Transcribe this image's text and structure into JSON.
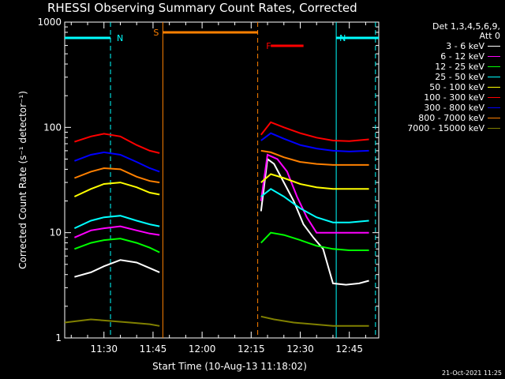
{
  "chart_data": {
    "type": "line",
    "title": "RHESSI Observing Summary Count Rates, Corrected",
    "xlabel": "Start Time (10-Aug-13 11:18:02)",
    "ylabel": "Corrected Count Rate (s⁻¹ detector⁻¹)",
    "y_scale": "log",
    "ylim": [
      1,
      1000
    ],
    "xlim": [
      "11:18",
      "12:54"
    ],
    "x_ticks": [
      "11:30",
      "11:45",
      "12:00",
      "12:15",
      "12:30",
      "12:45"
    ],
    "y_ticks": [
      "1",
      "10",
      "100",
      "1000"
    ],
    "grid": false,
    "legend_header": [
      "Det 1,3,4,5,6,9,",
      "Att 0"
    ],
    "legend_placement": "right",
    "series": [
      {
        "name": "3 - 6 keV",
        "color": "#ffffff",
        "points": [
          [
            "11:21",
            3.8
          ],
          [
            "11:26",
            4.2
          ],
          [
            "11:30",
            4.8
          ],
          [
            "11:35",
            5.5
          ],
          [
            "11:40",
            5.2
          ],
          [
            "11:44",
            4.6
          ],
          [
            "11:47",
            4.2
          ],
          [
            "12:18",
            16
          ],
          [
            "12:20",
            50
          ],
          [
            "12:22",
            45
          ],
          [
            "12:25",
            30
          ],
          [
            "12:28",
            20
          ],
          [
            "12:31",
            12
          ],
          [
            "12:34",
            9
          ],
          [
            "12:37",
            7
          ],
          [
            "12:40",
            3.3
          ],
          [
            "12:44",
            3.2
          ],
          [
            "12:48",
            3.3
          ],
          [
            "12:51",
            3.5
          ]
        ]
      },
      {
        "name": "6 - 12 keV",
        "color": "#ff00ff",
        "points": [
          [
            "11:21",
            9
          ],
          [
            "11:26",
            10.5
          ],
          [
            "11:30",
            11
          ],
          [
            "11:35",
            11.5
          ],
          [
            "11:40",
            10.5
          ],
          [
            "11:44",
            9.8
          ],
          [
            "11:47",
            9.5
          ],
          [
            "12:18",
            20
          ],
          [
            "12:20",
            55
          ],
          [
            "12:23",
            50
          ],
          [
            "12:26",
            38
          ],
          [
            "12:29",
            22
          ],
          [
            "12:32",
            14
          ],
          [
            "12:35",
            10
          ],
          [
            "12:40",
            10
          ],
          [
            "12:45",
            10
          ],
          [
            "12:51",
            10
          ]
        ]
      },
      {
        "name": "12 - 25 keV",
        "color": "#00ff00",
        "points": [
          [
            "11:21",
            7
          ],
          [
            "11:26",
            8
          ],
          [
            "11:30",
            8.5
          ],
          [
            "11:35",
            8.8
          ],
          [
            "11:40",
            8
          ],
          [
            "11:44",
            7.2
          ],
          [
            "11:47",
            6.5
          ],
          [
            "12:18",
            8
          ],
          [
            "12:21",
            10
          ],
          [
            "12:25",
            9.5
          ],
          [
            "12:30",
            8.5
          ],
          [
            "12:35",
            7.5
          ],
          [
            "12:40",
            7
          ],
          [
            "12:45",
            6.8
          ],
          [
            "12:51",
            6.8
          ]
        ]
      },
      {
        "name": "25 - 50 keV",
        "color": "#00ffff",
        "points": [
          [
            "11:21",
            11
          ],
          [
            "11:26",
            13
          ],
          [
            "11:30",
            14
          ],
          [
            "11:35",
            14.5
          ],
          [
            "11:40",
            13
          ],
          [
            "11:44",
            12
          ],
          [
            "11:47",
            11.5
          ],
          [
            "12:18",
            22
          ],
          [
            "12:21",
            26
          ],
          [
            "12:25",
            22
          ],
          [
            "12:30",
            17
          ],
          [
            "12:35",
            14
          ],
          [
            "12:40",
            12.5
          ],
          [
            "12:45",
            12.5
          ],
          [
            "12:51",
            13
          ]
        ]
      },
      {
        "name": "50 - 100 keV",
        "color": "#ffff00",
        "points": [
          [
            "11:21",
            22
          ],
          [
            "11:26",
            26
          ],
          [
            "11:30",
            29
          ],
          [
            "11:35",
            30
          ],
          [
            "11:40",
            27
          ],
          [
            "11:44",
            24
          ],
          [
            "11:47",
            23
          ],
          [
            "12:18",
            30
          ],
          [
            "12:21",
            36
          ],
          [
            "12:25",
            33
          ],
          [
            "12:30",
            29
          ],
          [
            "12:35",
            27
          ],
          [
            "12:40",
            26
          ],
          [
            "12:45",
            26
          ],
          [
            "12:51",
            26
          ]
        ]
      },
      {
        "name": "100 - 300 keV",
        "color": "#ff0000",
        "points": [
          [
            "11:21",
            73
          ],
          [
            "11:26",
            82
          ],
          [
            "11:30",
            87
          ],
          [
            "11:35",
            82
          ],
          [
            "11:40",
            68
          ],
          [
            "11:44",
            60
          ],
          [
            "11:47",
            57
          ],
          [
            "12:18",
            85
          ],
          [
            "12:21",
            112
          ],
          [
            "12:25",
            100
          ],
          [
            "12:30",
            88
          ],
          [
            "12:35",
            80
          ],
          [
            "12:40",
            75
          ],
          [
            "12:45",
            74
          ],
          [
            "12:51",
            77
          ]
        ]
      },
      {
        "name": "300 - 800 keV",
        "color": "#0000ff",
        "points": [
          [
            "11:21",
            48
          ],
          [
            "11:26",
            55
          ],
          [
            "11:30",
            58
          ],
          [
            "11:35",
            55
          ],
          [
            "11:40",
            47
          ],
          [
            "11:44",
            41
          ],
          [
            "11:47",
            38
          ],
          [
            "12:18",
            75
          ],
          [
            "12:21",
            88
          ],
          [
            "12:25",
            78
          ],
          [
            "12:30",
            68
          ],
          [
            "12:35",
            63
          ],
          [
            "12:40",
            60
          ],
          [
            "12:45",
            59
          ],
          [
            "12:51",
            60
          ]
        ]
      },
      {
        "name": "800 - 7000 keV",
        "color": "#ff8000",
        "points": [
          [
            "11:21",
            33
          ],
          [
            "11:26",
            38
          ],
          [
            "11:30",
            41
          ],
          [
            "11:35",
            40
          ],
          [
            "11:40",
            34
          ],
          [
            "11:44",
            31
          ],
          [
            "11:47",
            30
          ],
          [
            "12:18",
            60
          ],
          [
            "12:21",
            58
          ],
          [
            "12:25",
            52
          ],
          [
            "12:30",
            47
          ],
          [
            "12:35",
            45
          ],
          [
            "12:40",
            44
          ],
          [
            "12:45",
            44
          ],
          [
            "12:51",
            44
          ]
        ]
      },
      {
        "name": "7000 - 15000 keV",
        "color": "#808000",
        "points": [
          [
            "11:18",
            1.4
          ],
          [
            "11:26",
            1.5
          ],
          [
            "11:32",
            1.45
          ],
          [
            "11:38",
            1.4
          ],
          [
            "11:44",
            1.35
          ],
          [
            "11:47",
            1.3
          ],
          [
            "12:18",
            1.6
          ],
          [
            "12:22",
            1.5
          ],
          [
            "12:28",
            1.4
          ],
          [
            "12:34",
            1.35
          ],
          [
            "12:40",
            1.3
          ],
          [
            "12:46",
            1.3
          ],
          [
            "12:51",
            1.3
          ]
        ]
      }
    ],
    "annotations": [
      {
        "label": "N",
        "color": "#00ffff",
        "x_start": "11:18",
        "x_end": "11:32"
      },
      {
        "label": "N",
        "color": "#00ffff",
        "x_start": "12:41",
        "x_end": "12:54"
      },
      {
        "label": "S",
        "color": "#ff8000",
        "x_start": "11:48",
        "x_end": "12:17"
      },
      {
        "label": "F",
        "color": "#ff0000",
        "x_start": "12:21",
        "x_end": "12:31"
      }
    ],
    "vertical_markers": [
      {
        "x": "11:32",
        "color": "#00ffff",
        "style": "dashed"
      },
      {
        "x": "11:48",
        "color": "#ff8000",
        "style": "solid"
      },
      {
        "x": "12:17",
        "color": "#ff8000",
        "style": "dashed"
      },
      {
        "x": "12:41",
        "color": "#00ffff",
        "style": "solid"
      },
      {
        "x": "12:53",
        "color": "#00ffff",
        "style": "dashed"
      }
    ]
  },
  "timestamp": "21-Oct-2021 11:25"
}
